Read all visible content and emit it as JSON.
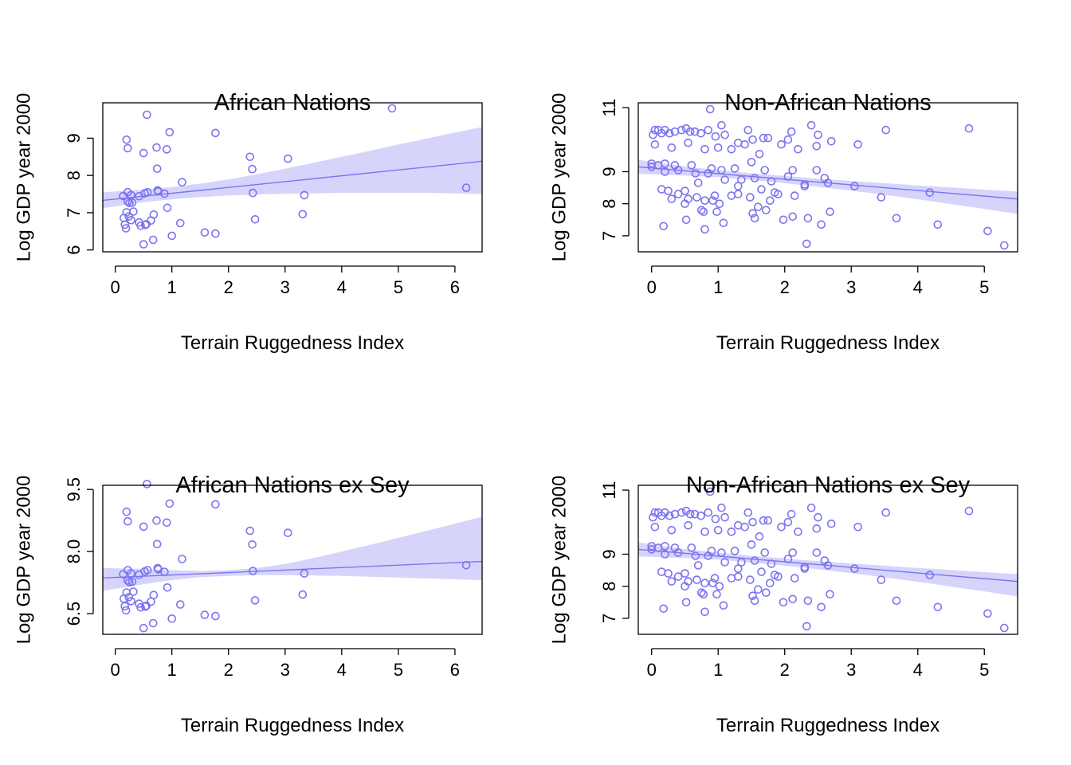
{
  "chart_data": [
    {
      "type": "scatter",
      "title": "African Nations",
      "xlabel": "Terrain Ruggedness Index",
      "ylabel": "Log GDP year 2000",
      "xlim": [
        -0.22,
        6.48
      ],
      "ylim": [
        5.95,
        9.95
      ],
      "xticks": [
        0,
        1,
        2,
        3,
        4,
        5,
        6
      ],
      "yticks": [
        6,
        7,
        8,
        9
      ],
      "ytick_labels": [
        "6",
        "7",
        "8",
        "9"
      ],
      "colors": {
        "points": "#7b74f0",
        "band": "#d6d4fb"
      },
      "fit": {
        "x0": -0.22,
        "y0": 7.33,
        "x1": 6.48,
        "y1": 8.38
      },
      "band": {
        "x": [
          -0.22,
          0.5,
          1.0,
          1.5,
          2.0,
          2.5,
          3.0,
          3.5,
          4.0,
          4.5,
          5.0,
          5.5,
          6.0,
          6.48
        ],
        "lower": [
          7.12,
          7.28,
          7.36,
          7.42,
          7.46,
          7.49,
          7.51,
          7.52,
          7.53,
          7.53,
          7.53,
          7.53,
          7.52,
          7.5
        ],
        "upper": [
          7.55,
          7.62,
          7.69,
          7.78,
          7.89,
          8.03,
          8.18,
          8.34,
          8.5,
          8.66,
          8.83,
          8.99,
          9.15,
          9.3
        ]
      },
      "points": {
        "x": [
          0.56,
          0.96,
          1.77,
          4.89,
          0.2,
          0.22,
          0.5,
          0.73,
          0.91,
          2.38,
          3.05,
          0.74,
          2.42,
          1.18,
          0.57,
          0.76,
          0.87,
          0.14,
          0.22,
          0.28,
          0.42,
          0.52,
          0.75,
          2.43,
          3.34,
          6.2,
          0.92,
          0.22,
          0.25,
          0.3,
          0.32,
          0.68,
          0.2,
          0.24,
          0.15,
          0.28,
          0.42,
          0.55,
          0.63,
          1.15,
          2.47,
          3.31,
          0.17,
          0.19,
          0.45,
          0.53,
          0.67,
          1.0,
          1.58,
          1.77,
          0.5
        ],
        "y": [
          9.63,
          9.16,
          9.14,
          9.8,
          8.96,
          8.73,
          8.6,
          8.75,
          8.7,
          8.5,
          8.45,
          8.18,
          8.17,
          7.82,
          7.55,
          7.57,
          7.51,
          7.45,
          7.55,
          7.47,
          7.44,
          7.52,
          7.6,
          7.53,
          7.47,
          7.67,
          7.13,
          7.3,
          7.26,
          7.27,
          7.03,
          6.95,
          7.01,
          6.9,
          6.86,
          6.8,
          6.74,
          6.69,
          6.79,
          6.72,
          6.82,
          6.96,
          6.68,
          6.58,
          6.65,
          6.67,
          6.27,
          6.38,
          6.47,
          6.44,
          6.15
        ]
      }
    },
    {
      "type": "scatter",
      "title": "Non-African Nations",
      "xlabel": "Terrain Ruggedness Index",
      "ylabel": "Log GDP year 2000",
      "xlim": [
        -0.2,
        5.5
      ],
      "ylim": [
        6.5,
        11.15
      ],
      "xticks": [
        0,
        1,
        2,
        3,
        4,
        5
      ],
      "yticks": [
        7,
        8,
        9,
        11
      ],
      "ytick_labels": [
        "7",
        "8",
        "9",
        "11"
      ],
      "colors": {
        "points": "#7b74f0",
        "band": "#d6d4fb"
      },
      "fit": {
        "x0": -0.2,
        "y0": 9.15,
        "x1": 5.5,
        "y1": 8.15
      },
      "band": {
        "x": [
          -0.2,
          0.5,
          1.0,
          1.5,
          2.0,
          2.5,
          3.0,
          3.5,
          4.0,
          4.5,
          5.0,
          5.5
        ],
        "lower": [
          8.93,
          8.88,
          8.83,
          8.74,
          8.64,
          8.53,
          8.41,
          8.28,
          8.14,
          7.99,
          7.84,
          7.68
        ],
        "upper": [
          9.37,
          9.16,
          9.05,
          8.95,
          8.87,
          8.78,
          8.71,
          8.64,
          8.57,
          8.51,
          8.44,
          8.38
        ]
      },
      "points": {
        "x": [
          0.88,
          0.05,
          0.1,
          0.2,
          0.35,
          0.52,
          0.65,
          0.85,
          1.05,
          1.45,
          1.68,
          2.1,
          2.4,
          3.52,
          4.77,
          0.02,
          0.15,
          0.27,
          0.45,
          0.58,
          0.74,
          0.96,
          1.1,
          1.3,
          1.52,
          1.75,
          2.05,
          2.5,
          2.7,
          3.1,
          0.05,
          0.3,
          0.55,
          0.8,
          1.0,
          1.2,
          1.4,
          1.62,
          1.95,
          2.2,
          2.48,
          0.0,
          0.1,
          0.2,
          0.35,
          0.6,
          0.9,
          1.05,
          1.25,
          1.5,
          1.7,
          2.12,
          2.48,
          0.0,
          0.2,
          0.4,
          0.66,
          0.85,
          1.1,
          1.35,
          1.55,
          1.8,
          2.05,
          2.3,
          2.6,
          3.05,
          3.45,
          4.18,
          0.25,
          0.5,
          0.7,
          0.95,
          1.3,
          1.65,
          1.9,
          2.15,
          0.15,
          0.4,
          0.68,
          0.92,
          1.2,
          1.48,
          1.78,
          2.3,
          0.3,
          0.55,
          0.8,
          1.02,
          1.6,
          1.85,
          2.65,
          0.5,
          0.75,
          0.98,
          1.3,
          1.52,
          1.72,
          1.98,
          2.12,
          2.68,
          0.52,
          0.78,
          1.08,
          1.55,
          2.35,
          2.55,
          3.68,
          0.18,
          0.8,
          4.3,
          5.05,
          5.3,
          2.33
        ],
        "y": [
          10.95,
          10.3,
          10.3,
          10.3,
          10.25,
          10.35,
          10.25,
          10.3,
          10.45,
          10.3,
          10.05,
          10.25,
          10.45,
          10.3,
          10.35,
          10.15,
          10.2,
          10.2,
          10.3,
          10.25,
          10.2,
          10.1,
          10.15,
          9.9,
          10.0,
          10.05,
          10.0,
          10.15,
          9.95,
          9.85,
          9.85,
          9.75,
          9.9,
          9.7,
          9.75,
          9.7,
          9.85,
          9.55,
          9.85,
          9.7,
          9.8,
          9.25,
          9.2,
          9.25,
          9.2,
          9.2,
          9.1,
          9.05,
          9.1,
          9.3,
          9.05,
          9.05,
          9.05,
          9.15,
          9.0,
          9.05,
          8.95,
          8.95,
          8.75,
          8.75,
          8.8,
          8.7,
          8.85,
          8.55,
          8.8,
          8.55,
          8.2,
          8.35,
          8.4,
          8.4,
          8.65,
          8.25,
          8.55,
          8.45,
          8.3,
          8.25,
          8.45,
          8.3,
          8.2,
          8.1,
          8.25,
          8.2,
          8.1,
          8.6,
          8.15,
          8.15,
          8.1,
          8.0,
          7.9,
          8.35,
          8.65,
          8.0,
          7.8,
          7.75,
          8.3,
          7.7,
          7.8,
          7.5,
          7.6,
          7.75,
          7.5,
          7.75,
          7.4,
          7.55,
          7.55,
          7.35,
          7.55,
          7.3,
          7.2,
          7.35,
          7.15,
          6.7,
          6.75
        ]
      }
    },
    {
      "type": "scatter",
      "title": "African Nations ex Sey",
      "xlabel": "Terrain Ruggedness Index",
      "ylabel": "Log GDP year 2000",
      "xlim": [
        -0.22,
        6.48
      ],
      "ylim": [
        6.0,
        9.6
      ],
      "xticks": [
        0,
        1,
        2,
        3,
        4,
        5,
        6
      ],
      "yticks": [
        6.5,
        8.0,
        9.5
      ],
      "ytick_labels": [
        "6.5",
        "8.0",
        "9.5"
      ],
      "colors": {
        "points": "#7b74f0",
        "band": "#d6d4fb"
      },
      "fit": {
        "x0": -0.22,
        "y0": 7.36,
        "x1": 6.48,
        "y1": 7.76
      },
      "band": {
        "x": [
          -0.22,
          0.5,
          1.0,
          1.5,
          2.0,
          2.5,
          3.0,
          3.5,
          4.0,
          4.5,
          5.0,
          5.5,
          6.0,
          6.48
        ],
        "lower": [
          7.05,
          7.21,
          7.31,
          7.38,
          7.41,
          7.43,
          7.43,
          7.42,
          7.41,
          7.39,
          7.37,
          7.35,
          7.33,
          7.31
        ],
        "upper": [
          7.6,
          7.58,
          7.55,
          7.53,
          7.55,
          7.6,
          7.7,
          7.84,
          8.0,
          8.16,
          8.33,
          8.5,
          8.67,
          8.84
        ]
      },
      "points": {
        "x": [
          0.56,
          0.96,
          1.77,
          0.2,
          0.22,
          0.5,
          0.73,
          0.91,
          2.38,
          3.05,
          0.74,
          2.42,
          1.18,
          0.57,
          0.76,
          0.87,
          0.14,
          0.22,
          0.28,
          0.42,
          0.52,
          0.75,
          2.43,
          3.34,
          6.2,
          0.92,
          0.22,
          0.25,
          0.3,
          0.32,
          0.68,
          0.2,
          0.24,
          0.15,
          0.28,
          0.42,
          0.55,
          0.63,
          1.15,
          2.47,
          3.31,
          0.17,
          0.19,
          0.45,
          0.53,
          0.67,
          1.0,
          1.58,
          1.77,
          0.5
        ],
        "y": [
          9.63,
          9.16,
          9.14,
          8.96,
          8.73,
          8.6,
          8.75,
          8.7,
          8.5,
          8.45,
          8.18,
          8.17,
          7.82,
          7.55,
          7.57,
          7.51,
          7.45,
          7.55,
          7.47,
          7.44,
          7.52,
          7.6,
          7.53,
          7.47,
          7.67,
          7.13,
          7.3,
          7.26,
          7.27,
          7.03,
          6.95,
          7.01,
          6.9,
          6.86,
          6.8,
          6.74,
          6.69,
          6.79,
          6.72,
          6.82,
          6.96,
          6.68,
          6.58,
          6.65,
          6.67,
          6.27,
          6.38,
          6.47,
          6.44,
          6.15
        ]
      }
    },
    {
      "type": "scatter",
      "title": "Non-African Nations ex Sey",
      "xlabel": "Terrain Ruggedness Index",
      "ylabel": "Log GDP year 2000",
      "xlim": [
        -0.2,
        5.5
      ],
      "ylim": [
        6.5,
        11.15
      ],
      "xticks": [
        0,
        1,
        2,
        3,
        4,
        5
      ],
      "yticks": [
        7,
        8,
        9,
        11
      ],
      "ytick_labels": [
        "7",
        "8",
        "9",
        "11"
      ],
      "colors": {
        "points": "#7b74f0",
        "band": "#d6d4fb"
      },
      "fit": {
        "x0": -0.2,
        "y0": 9.15,
        "x1": 5.5,
        "y1": 8.15
      },
      "band": {
        "x": [
          -0.2,
          0.5,
          1.0,
          1.5,
          2.0,
          2.5,
          3.0,
          3.5,
          4.0,
          4.5,
          5.0,
          5.5
        ],
        "lower": [
          8.93,
          8.88,
          8.83,
          8.74,
          8.64,
          8.53,
          8.41,
          8.28,
          8.14,
          7.99,
          7.84,
          7.68
        ],
        "upper": [
          9.37,
          9.16,
          9.05,
          8.95,
          8.87,
          8.78,
          8.71,
          8.64,
          8.57,
          8.51,
          8.44,
          8.38
        ]
      },
      "points": {
        "x": [
          0.88,
          0.05,
          0.1,
          0.2,
          0.35,
          0.52,
          0.65,
          0.85,
          1.05,
          1.45,
          1.68,
          2.1,
          2.4,
          3.52,
          4.77,
          0.02,
          0.15,
          0.27,
          0.45,
          0.58,
          0.74,
          0.96,
          1.1,
          1.3,
          1.52,
          1.75,
          2.05,
          2.5,
          2.7,
          3.1,
          0.05,
          0.3,
          0.55,
          0.8,
          1.0,
          1.2,
          1.4,
          1.62,
          1.95,
          2.2,
          2.48,
          0.0,
          0.1,
          0.2,
          0.35,
          0.6,
          0.9,
          1.05,
          1.25,
          1.5,
          1.7,
          2.12,
          2.48,
          0.0,
          0.2,
          0.4,
          0.66,
          0.85,
          1.1,
          1.35,
          1.55,
          1.8,
          2.05,
          2.3,
          2.6,
          3.05,
          3.45,
          4.18,
          0.25,
          0.5,
          0.7,
          0.95,
          1.3,
          1.65,
          1.9,
          2.15,
          0.15,
          0.4,
          0.68,
          0.92,
          1.2,
          1.48,
          1.78,
          2.3,
          0.3,
          0.55,
          0.8,
          1.02,
          1.6,
          1.85,
          2.65,
          0.5,
          0.75,
          0.98,
          1.3,
          1.52,
          1.72,
          1.98,
          2.12,
          2.68,
          0.52,
          0.78,
          1.08,
          1.55,
          2.35,
          2.55,
          3.68,
          0.18,
          0.8,
          4.3,
          5.05,
          5.3,
          2.33
        ],
        "y": [
          10.95,
          10.3,
          10.3,
          10.3,
          10.25,
          10.35,
          10.25,
          10.3,
          10.45,
          10.3,
          10.05,
          10.25,
          10.45,
          10.3,
          10.35,
          10.15,
          10.2,
          10.2,
          10.3,
          10.25,
          10.2,
          10.1,
          10.15,
          9.9,
          10.0,
          10.05,
          10.0,
          10.15,
          9.95,
          9.85,
          9.85,
          9.75,
          9.9,
          9.7,
          9.75,
          9.7,
          9.85,
          9.55,
          9.85,
          9.7,
          9.8,
          9.25,
          9.2,
          9.25,
          9.2,
          9.2,
          9.1,
          9.05,
          9.1,
          9.3,
          9.05,
          9.05,
          9.05,
          9.15,
          9.0,
          9.05,
          8.95,
          8.95,
          8.75,
          8.75,
          8.8,
          8.7,
          8.85,
          8.55,
          8.8,
          8.55,
          8.2,
          8.35,
          8.4,
          8.4,
          8.65,
          8.25,
          8.55,
          8.45,
          8.3,
          8.25,
          8.45,
          8.3,
          8.2,
          8.1,
          8.25,
          8.2,
          8.1,
          8.6,
          8.15,
          8.15,
          8.1,
          8.0,
          7.9,
          8.35,
          8.65,
          8.0,
          7.8,
          7.75,
          8.3,
          7.7,
          7.8,
          7.5,
          7.6,
          7.75,
          7.5,
          7.75,
          7.4,
          7.55,
          7.55,
          7.35,
          7.55,
          7.3,
          7.2,
          7.35,
          7.15,
          6.7,
          6.75
        ]
      }
    }
  ]
}
